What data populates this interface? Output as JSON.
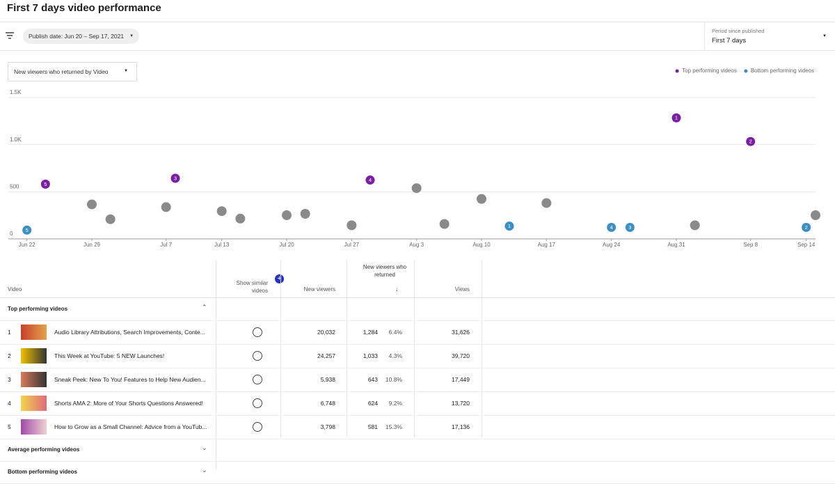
{
  "header": {
    "title": "First 7 days video performance"
  },
  "filters": {
    "publish_date": "Publish date: Jun 20 – Sep 17, 2021",
    "period_label": "Period since published",
    "period_value": "First 7 days"
  },
  "metric_select": "New viewers who returned by Video",
  "chart_data": {
    "type": "scatter",
    "xlim": [
      "Jun 20",
      "Sep 15"
    ],
    "xticks": [
      "Jun 22",
      "Jun 29",
      "Jul 7",
      "Jul 13",
      "Jul 20",
      "Jul 27",
      "Aug 3",
      "Aug 10",
      "Aug 17",
      "Aug 24",
      "Aug 31",
      "Sep 8",
      "Sep 14"
    ],
    "ylim": [
      0,
      1500
    ],
    "yticks": [
      0,
      500,
      {
        "value": 1000,
        "label": "1.0K"
      },
      {
        "value": 1500,
        "label": "1.5K"
      }
    ],
    "grid": true,
    "legend": "top-right",
    "series": [
      {
        "color": "#8a8a8a",
        "x": [
          "Jun 29",
          "Jul 1",
          "Jul 7",
          "Jul 13",
          "Jul 15",
          "Jul 20",
          "Jul 22",
          "Jul 27",
          "Aug 3",
          "Aug 6",
          "Aug 10",
          "Aug 17",
          "Sep 2",
          "Sep 15"
        ],
        "values": [
          366,
          208,
          337,
          294,
          215,
          251,
          266,
          144,
          538,
          158,
          424,
          380,
          144,
          251
        ]
      },
      {
        "name": "Top performing videos",
        "color": "#7b1fa2",
        "x": [
          "Jun 24",
          "Jul 8",
          "Jul 29",
          "Aug 31",
          "Sep 8"
        ],
        "values": [
          581,
          643,
          624,
          1284,
          1033
        ],
        "labels": [
          "5",
          "3",
          "4",
          "1",
          "2"
        ]
      },
      {
        "name": "Bottom performing videos",
        "color": "#3b8fc4",
        "x": [
          "Jun 22",
          "Aug 13",
          "Aug 24",
          "Aug 26",
          "Sep 14"
        ],
        "values": [
          93,
          136,
          122,
          122,
          122
        ],
        "labels": [
          "5",
          "1",
          "4",
          "3",
          "2"
        ]
      }
    ]
  },
  "table": {
    "columns": [
      "Video",
      "Show similar videos",
      "New viewers",
      "New viewers who returned",
      "Views"
    ],
    "sections": [
      {
        "title": "Top performing videos",
        "rows": [
          [
            "1",
            "Audio Library Attributions, Search Improvements, Conte...",
            "20,032",
            "1,284",
            "6.4%",
            "31,626"
          ],
          [
            "2",
            "This Week at YouTube: 5 NEW Launches!",
            "24,257",
            "1,033",
            "4.3%",
            "39,720"
          ],
          [
            "3",
            "Sneak Peek: New To You! Features to Help New Audien...",
            "5,938",
            "643",
            "10.8%",
            "17,449"
          ],
          [
            "4",
            "Shorts AMA 2: More of Your Shorts Questions Answered!",
            "6,748",
            "624",
            "9.2%",
            "13,720"
          ],
          [
            "5",
            "How to Grow as a Small Channel: Advice from a YouTub...",
            "3,798",
            "581",
            "15.3%",
            "17,136"
          ]
        ]
      },
      {
        "title": "Average performing videos"
      },
      {
        "title": "Bottom performing videos"
      }
    ]
  }
}
